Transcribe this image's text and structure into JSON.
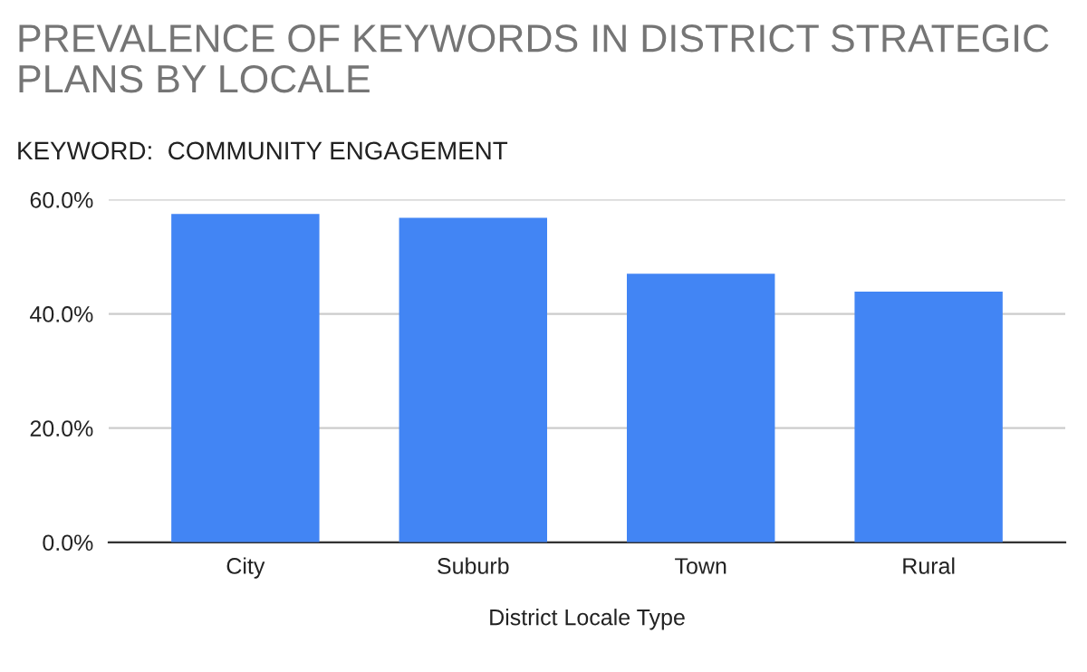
{
  "chart_data": {
    "type": "bar",
    "title": "PREVALENCE OF KEYWORDS IN DISTRICT STRATEGIC PLANS BY LOCALE",
    "subtitle": "KEYWORD:  COMMUNITY ENGAGEMENT",
    "xlabel": "District Locale Type",
    "categories": [
      "City",
      "Suburb",
      "Town",
      "Rural"
    ],
    "values": [
      57.5,
      56.8,
      47.0,
      43.9
    ],
    "color": "#4285f4",
    "ylim": [
      0,
      60
    ],
    "yticks": [
      {
        "value": 0,
        "label": "0.0%"
      },
      {
        "value": 20,
        "label": "20.0%"
      },
      {
        "value": 40,
        "label": "40.0%"
      },
      {
        "value": 60,
        "label": "60.0%"
      }
    ],
    "grid": "y"
  }
}
